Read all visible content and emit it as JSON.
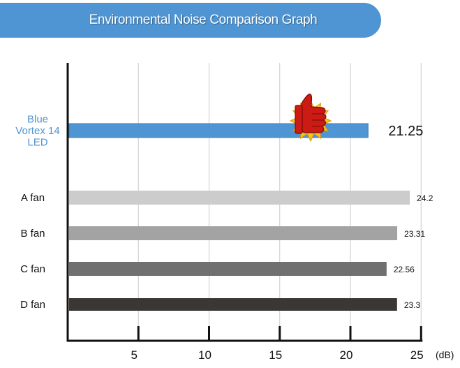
{
  "chart_data": {
    "type": "bar",
    "orientation": "horizontal",
    "title": "Environmental Noise Comparison Graph",
    "xlabel": "(dB)",
    "ylabel": "",
    "xlim": [
      0,
      25
    ],
    "xticks": [
      "5",
      "10",
      "15",
      "20",
      "25"
    ],
    "grid": true,
    "categories": [
      "Blue Vortex 14 LED",
      "A fan",
      "B fan",
      "C fan",
      "D fan"
    ],
    "category_lines": [
      [
        "Blue",
        "Vortex 14",
        "LED"
      ],
      [
        "A fan"
      ],
      [
        "B fan"
      ],
      [
        "C fan"
      ],
      [
        "D fan"
      ]
    ],
    "values": [
      21.25,
      24.2,
      23.31,
      22.56,
      23.3
    ],
    "value_labels": [
      "21.25",
      "24.2",
      "23.31",
      "22.56",
      "23.3"
    ],
    "highlight_category": "Blue Vortex 14 LED",
    "highlight_icon": "thumbs-up-icon",
    "colors": {
      "banner": "#4f95d3",
      "highlight_bar": "#4f95d3",
      "highlight_label": "#4f95d3",
      "bars": [
        "#4f95d3",
        "#cccccc",
        "#a3a3a3",
        "#707070",
        "#3b3734"
      ],
      "axis": "#111111",
      "grid": "#c8c8c8"
    }
  }
}
